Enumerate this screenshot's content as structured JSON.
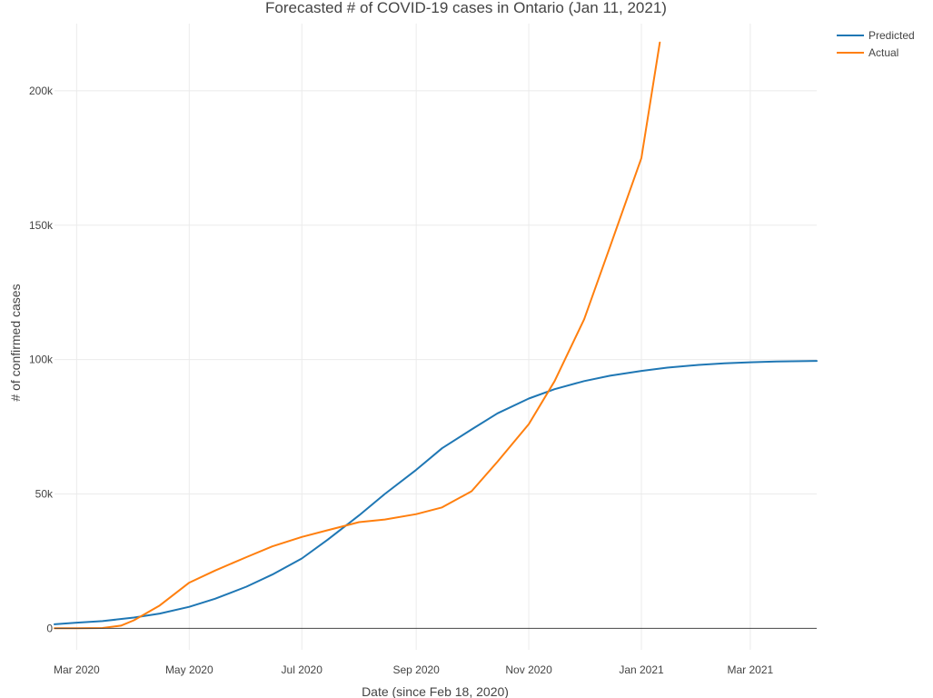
{
  "chart_data": {
    "type": "line",
    "title": "Forecasted # of COVID-19 cases in Ontario (Jan 11, 2021)",
    "xlabel": "Date (since Feb 18, 2020)",
    "ylabel": "# of confirmed cases",
    "x_axis_type": "date",
    "xlim": [
      "2020-02-18",
      "2021-04-06"
    ],
    "ylim": [
      -8000,
      225000
    ],
    "x_ticks": [
      {
        "value": "2020-03-01",
        "label": "Mar 2020"
      },
      {
        "value": "2020-05-01",
        "label": "May 2020"
      },
      {
        "value": "2020-07-01",
        "label": "Jul 2020"
      },
      {
        "value": "2020-09-01",
        "label": "Sep 2020"
      },
      {
        "value": "2020-11-01",
        "label": "Nov 2020"
      },
      {
        "value": "2021-01-01",
        "label": "Jan 2021"
      },
      {
        "value": "2021-03-01",
        "label": "Mar 2021"
      }
    ],
    "y_ticks": [
      {
        "value": 0,
        "label": "0"
      },
      {
        "value": 50000,
        "label": "50k"
      },
      {
        "value": 100000,
        "label": "100k"
      },
      {
        "value": 150000,
        "label": "150k"
      },
      {
        "value": 200000,
        "label": "200k"
      }
    ],
    "grid": true,
    "legend_position": "top-right",
    "series": [
      {
        "name": "Predicted",
        "color": "#1f77b4",
        "points": [
          [
            "2020-02-18",
            1500
          ],
          [
            "2020-03-01",
            2100
          ],
          [
            "2020-03-15",
            2700
          ],
          [
            "2020-04-01",
            4000
          ],
          [
            "2020-04-15",
            5500
          ],
          [
            "2020-05-01",
            8000
          ],
          [
            "2020-05-15",
            11000
          ],
          [
            "2020-06-01",
            15500
          ],
          [
            "2020-06-15",
            20000
          ],
          [
            "2020-07-01",
            26000
          ],
          [
            "2020-07-15",
            33000
          ],
          [
            "2020-08-01",
            42000
          ],
          [
            "2020-08-15",
            50000
          ],
          [
            "2020-09-01",
            59000
          ],
          [
            "2020-09-15",
            67000
          ],
          [
            "2020-10-01",
            74000
          ],
          [
            "2020-10-15",
            80000
          ],
          [
            "2020-11-01",
            85500
          ],
          [
            "2020-11-15",
            89000
          ],
          [
            "2020-12-01",
            92000
          ],
          [
            "2020-12-15",
            94000
          ],
          [
            "2021-01-01",
            95800
          ],
          [
            "2021-01-15",
            97000
          ],
          [
            "2021-02-01",
            98000
          ],
          [
            "2021-02-15",
            98600
          ],
          [
            "2021-03-01",
            99000
          ],
          [
            "2021-03-15",
            99300
          ],
          [
            "2021-04-06",
            99500
          ]
        ]
      },
      {
        "name": "Actual",
        "color": "#ff7f0e",
        "points": [
          [
            "2020-02-18",
            0
          ],
          [
            "2020-03-01",
            0
          ],
          [
            "2020-03-15",
            100
          ],
          [
            "2020-03-25",
            1000
          ],
          [
            "2020-04-01",
            3000
          ],
          [
            "2020-04-15",
            8500
          ],
          [
            "2020-05-01",
            17000
          ],
          [
            "2020-05-15",
            21500
          ],
          [
            "2020-06-01",
            26500
          ],
          [
            "2020-06-15",
            30500
          ],
          [
            "2020-07-01",
            34000
          ],
          [
            "2020-07-15",
            36500
          ],
          [
            "2020-08-01",
            39500
          ],
          [
            "2020-08-15",
            40500
          ],
          [
            "2020-09-01",
            42500
          ],
          [
            "2020-09-15",
            45000
          ],
          [
            "2020-10-01",
            51000
          ],
          [
            "2020-10-15",
            62000
          ],
          [
            "2020-11-01",
            76000
          ],
          [
            "2020-11-15",
            92000
          ],
          [
            "2020-12-01",
            115000
          ],
          [
            "2020-12-15",
            142000
          ],
          [
            "2021-01-01",
            175000
          ],
          [
            "2021-01-11",
            218000
          ]
        ]
      }
    ]
  }
}
